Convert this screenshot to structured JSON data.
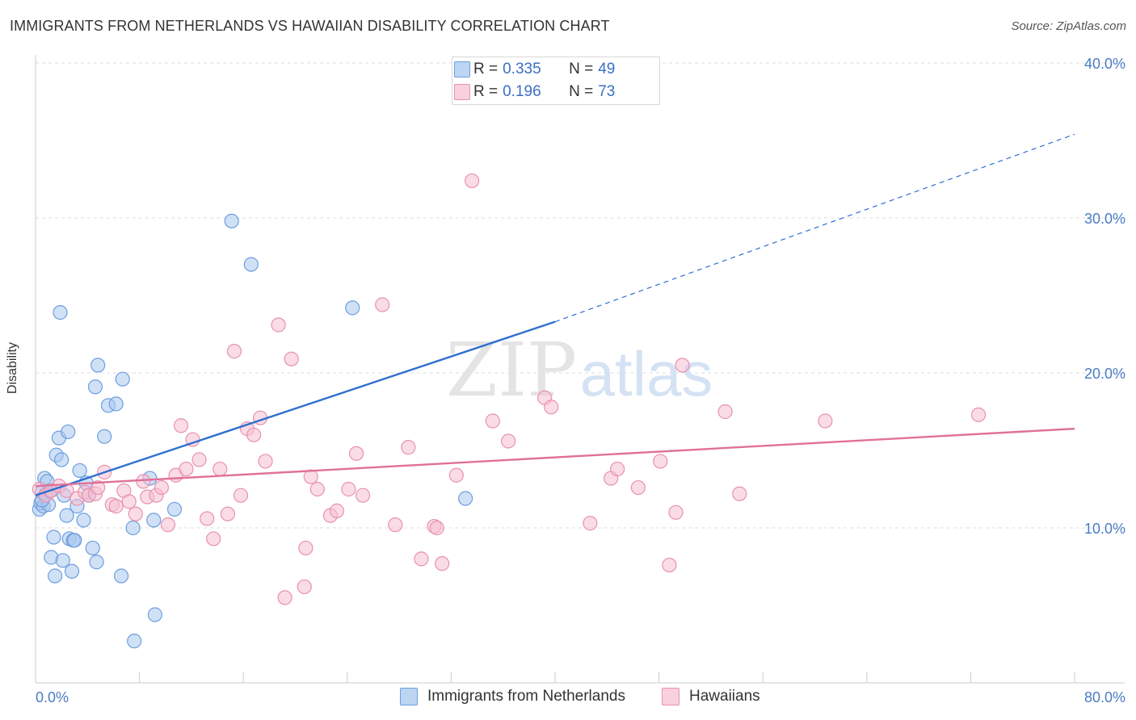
{
  "title": "IMMIGRANTS FROM NETHERLANDS VS HAWAIIAN DISABILITY CORRELATION CHART",
  "source": "Source: ZipAtlas.com",
  "watermark": {
    "zip": "ZIP",
    "atlas": "atlas"
  },
  "legend_top": [
    {
      "r_label": "R = ",
      "r_value": "0.335",
      "n_label": "N = ",
      "n_value": "49"
    },
    {
      "r_label": "R = ",
      "r_value": "0.196",
      "n_label": "N = ",
      "n_value": "73"
    }
  ],
  "colors": {
    "blue_fill": "#a9c8ef",
    "blue_stroke": "#6d9ee0",
    "blue_line": "#2f6fcf",
    "pink_fill": "#f6bfd2",
    "pink_stroke": "#e891b0",
    "pink_line": "#e07099",
    "grid": "#dddddd",
    "tick_text": "#4a7cc4"
  },
  "chart_data": {
    "type": "scatter",
    "title": "IMMIGRANTS FROM NETHERLANDS VS HAWAIIAN DISABILITY CORRELATION CHART",
    "xlabel": "",
    "ylabel": "Disability",
    "xlim": [
      0,
      80
    ],
    "ylim": [
      0,
      40
    ],
    "x_tick_labels": [
      "0.0%",
      "80.0%"
    ],
    "y_ticks": [
      10,
      20,
      30,
      40
    ],
    "y_tick_labels": [
      "10.0%",
      "20.0%",
      "30.0%",
      "40.0%"
    ],
    "grid": true,
    "legend_position": "bottom",
    "series": [
      {
        "name": "Immigrants from Netherlands",
        "color": "#a9c8ef",
        "points": [
          [
            0.3,
            11.2
          ],
          [
            0.4,
            11.6
          ],
          [
            0.5,
            12.3
          ],
          [
            0.6,
            11.4
          ],
          [
            0.7,
            13.2
          ],
          [
            0.8,
            12.2
          ],
          [
            0.9,
            13.0
          ],
          [
            1.0,
            11.5
          ],
          [
            1.2,
            8.1
          ],
          [
            1.4,
            9.4
          ],
          [
            1.5,
            6.9
          ],
          [
            1.6,
            14.7
          ],
          [
            1.8,
            15.8
          ],
          [
            1.9,
            23.9
          ],
          [
            2.0,
            14.4
          ],
          [
            2.1,
            7.9
          ],
          [
            2.2,
            12.1
          ],
          [
            2.4,
            10.8
          ],
          [
            2.5,
            16.2
          ],
          [
            2.6,
            9.3
          ],
          [
            2.8,
            7.2
          ],
          [
            2.9,
            9.2
          ],
          [
            3.0,
            9.2
          ],
          [
            3.2,
            11.4
          ],
          [
            3.4,
            13.7
          ],
          [
            3.7,
            10.5
          ],
          [
            3.9,
            12.9
          ],
          [
            4.1,
            12.1
          ],
          [
            4.4,
            8.7
          ],
          [
            4.6,
            19.1
          ],
          [
            4.7,
            7.8
          ],
          [
            4.8,
            20.5
          ],
          [
            5.3,
            15.9
          ],
          [
            5.6,
            17.9
          ],
          [
            6.2,
            18.0
          ],
          [
            6.6,
            6.9
          ],
          [
            6.7,
            19.6
          ],
          [
            7.5,
            10.0
          ],
          [
            7.6,
            2.7
          ],
          [
            8.8,
            13.2
          ],
          [
            9.1,
            10.5
          ],
          [
            9.2,
            4.4
          ],
          [
            10.7,
            11.2
          ],
          [
            15.1,
            29.8
          ],
          [
            16.6,
            27.0
          ],
          [
            24.4,
            24.2
          ],
          [
            33.1,
            11.9
          ],
          [
            0.5,
            11.8
          ],
          [
            1.1,
            12.4
          ]
        ]
      },
      {
        "name": "Hawaiians",
        "color": "#f6bfd2",
        "points": [
          [
            0.3,
            12.5
          ],
          [
            0.8,
            12.1
          ],
          [
            1.2,
            12.4
          ],
          [
            1.8,
            12.7
          ],
          [
            2.4,
            12.4
          ],
          [
            3.2,
            11.9
          ],
          [
            3.8,
            12.3
          ],
          [
            4.1,
            12.1
          ],
          [
            4.6,
            12.2
          ],
          [
            4.8,
            12.6
          ],
          [
            5.3,
            13.6
          ],
          [
            5.9,
            11.5
          ],
          [
            6.2,
            11.4
          ],
          [
            6.8,
            12.4
          ],
          [
            7.2,
            11.7
          ],
          [
            7.7,
            10.9
          ],
          [
            8.3,
            13.0
          ],
          [
            8.6,
            12.0
          ],
          [
            9.3,
            12.1
          ],
          [
            9.7,
            12.6
          ],
          [
            10.2,
            10.2
          ],
          [
            10.8,
            13.4
          ],
          [
            11.2,
            16.6
          ],
          [
            11.6,
            13.8
          ],
          [
            12.1,
            15.7
          ],
          [
            12.6,
            14.4
          ],
          [
            13.2,
            10.6
          ],
          [
            13.7,
            9.3
          ],
          [
            14.2,
            13.8
          ],
          [
            14.8,
            10.9
          ],
          [
            15.3,
            21.4
          ],
          [
            15.8,
            12.1
          ],
          [
            16.3,
            16.4
          ],
          [
            16.8,
            16.0
          ],
          [
            17.3,
            17.1
          ],
          [
            17.7,
            14.3
          ],
          [
            18.7,
            23.1
          ],
          [
            19.2,
            5.5
          ],
          [
            19.7,
            20.9
          ],
          [
            20.7,
            6.2
          ],
          [
            20.8,
            8.7
          ],
          [
            21.2,
            13.3
          ],
          [
            21.7,
            12.5
          ],
          [
            22.7,
            10.8
          ],
          [
            23.2,
            11.1
          ],
          [
            24.1,
            12.5
          ],
          [
            24.7,
            14.8
          ],
          [
            25.2,
            12.1
          ],
          [
            26.7,
            24.4
          ],
          [
            27.7,
            10.2
          ],
          [
            28.7,
            15.2
          ],
          [
            29.7,
            8.0
          ],
          [
            30.7,
            10.1
          ],
          [
            30.9,
            10.0
          ],
          [
            31.3,
            7.7
          ],
          [
            32.4,
            13.4
          ],
          [
            33.6,
            32.4
          ],
          [
            35.2,
            16.9
          ],
          [
            36.4,
            15.6
          ],
          [
            39.2,
            18.4
          ],
          [
            39.7,
            17.8
          ],
          [
            42.7,
            10.3
          ],
          [
            44.3,
            13.2
          ],
          [
            44.8,
            13.8
          ],
          [
            46.4,
            12.6
          ],
          [
            48.1,
            14.3
          ],
          [
            48.8,
            7.6
          ],
          [
            49.3,
            11.0
          ],
          [
            49.8,
            20.5
          ],
          [
            53.1,
            17.5
          ],
          [
            54.2,
            12.2
          ],
          [
            60.8,
            16.9
          ],
          [
            72.6,
            17.3
          ]
        ]
      }
    ],
    "trend_lines": [
      {
        "series": "Immigrants from Netherlands",
        "color": "#2f6fcf",
        "solid": [
          [
            0,
            12.1
          ],
          [
            40,
            23.3
          ]
        ],
        "dashed": [
          [
            40,
            23.3
          ],
          [
            80,
            35.4
          ]
        ]
      },
      {
        "series": "Hawaiians",
        "color": "#e07099",
        "solid": [
          [
            0,
            12.7
          ],
          [
            80,
            16.4
          ]
        ]
      }
    ]
  }
}
